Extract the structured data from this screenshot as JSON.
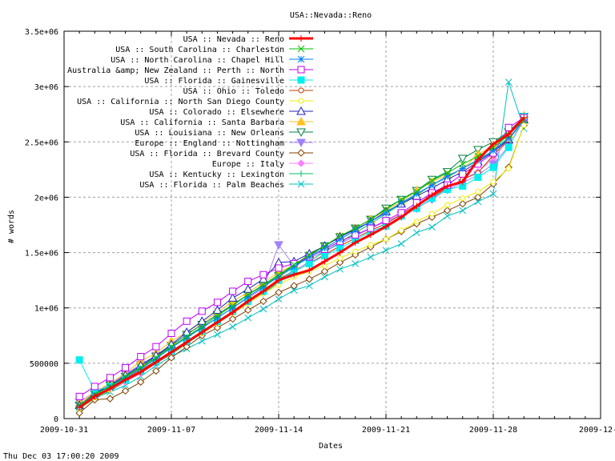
{
  "chart_data": {
    "type": "line",
    "title": "USA::Nevada::Reno",
    "xlabel": "Dates",
    "ylabel": "# words",
    "footer": "Thu Dec 03 17:00:20 2009",
    "xlim": [
      "2009-10-31",
      "2009-12-05"
    ],
    "ylim": [
      0,
      3500000
    ],
    "grid": true,
    "legend_position": "top-left",
    "x_ticks": [
      "2009-10-31",
      "2009-11-07",
      "2009-11-14",
      "2009-11-21",
      "2009-11-28",
      "2009-12-0"
    ],
    "y_ticks": [
      {
        "value": 0,
        "label": "0"
      },
      {
        "value": 500000,
        "label": "500000"
      },
      {
        "value": 1000000,
        "label": "1e+06"
      },
      {
        "value": 1500000,
        "label": "1.5e+06"
      },
      {
        "value": 2000000,
        "label": "2e+06"
      },
      {
        "value": 2500000,
        "label": "2.5e+06"
      },
      {
        "value": 3000000,
        "label": "3e+06"
      },
      {
        "value": 3500000,
        "label": "3.5e+06"
      }
    ],
    "x_start": "2009-11-01",
    "x_step_days": 1,
    "series": [
      {
        "name": "USA :: Nevada :: Reno",
        "color": "#ff0000",
        "marker": "plus",
        "width": 3,
        "values": [
          100000,
          200000,
          270000,
          350000,
          420000,
          510000,
          600000,
          690000,
          780000,
          870000,
          960000,
          1060000,
          1150000,
          1250000,
          1300000,
          1340000,
          1420000,
          1500000,
          1590000,
          1660000,
          1735000,
          1820000,
          1920000,
          2020000,
          2100000,
          2140000,
          2340000,
          2480000,
          2570000,
          2720000
        ]
      },
      {
        "name": "USA :: South Carolina :: Charleston",
        "color": "#00c000",
        "marker": "cross",
        "width": 1,
        "values": [
          120000,
          220000,
          290000,
          380000,
          460000,
          550000,
          650000,
          740000,
          830000,
          930000,
          1020000,
          1120000,
          1210000,
          1300000,
          1390000,
          1480000,
          1560000,
          1650000,
          1720000,
          1800000,
          1890000,
          1980000,
          2050000,
          2150000,
          2220000,
          2300000,
          2370000,
          2450000,
          2560000,
          2700000
        ]
      },
      {
        "name": "USA :: North Carolina :: Chapel Hill",
        "color": "#0080ff",
        "marker": "star",
        "width": 1,
        "values": [
          110000,
          210000,
          280000,
          370000,
          450000,
          540000,
          640000,
          730000,
          820000,
          910000,
          1000000,
          1100000,
          1190000,
          1280000,
          1370000,
          1460000,
          1540000,
          1620000,
          1700000,
          1780000,
          1860000,
          1950000,
          2030000,
          2110000,
          2190000,
          2260000,
          2330000,
          2420000,
          2530000,
          2700000
        ]
      },
      {
        "name": "Australia &amp; New Zealand :: Perth :: North",
        "color": "#c000ff",
        "marker": "box",
        "width": 1,
        "values": [
          200000,
          290000,
          370000,
          460000,
          560000,
          650000,
          770000,
          880000,
          970000,
          1050000,
          1150000,
          1240000,
          1300000,
          1360000,
          1400000,
          1460000,
          1530000,
          1600000,
          1660000,
          1720000,
          1790000,
          1860000,
          1950000,
          2040000,
          2110000,
          2210000,
          2300000,
          2400000,
          2630000,
          2720000
        ]
      },
      {
        "name": "USA :: Florida :: Gainesville",
        "color": "#00eeee",
        "marker": "fbox",
        "width": 1,
        "values": [
          530000,
          250000,
          290000,
          350000,
          430000,
          510000,
          610000,
          700000,
          790000,
          880000,
          970000,
          1060000,
          1150000,
          1250000,
          1330000,
          1400000,
          1470000,
          1540000,
          1610000,
          1690000,
          1740000,
          1830000,
          1900000,
          1990000,
          2070000,
          2100000,
          2180000,
          2270000,
          2450000,
          2730000
        ]
      },
      {
        "name": "USA :: Ohio :: Toledo",
        "color": "#c04000",
        "marker": "circle",
        "width": 1,
        "values": [
          100000,
          200000,
          280000,
          360000,
          440000,
          520000,
          610000,
          700000,
          790000,
          880000,
          970000,
          1070000,
          1160000,
          1260000,
          1330000,
          1400000,
          1480000,
          1560000,
          1630000,
          1700000,
          1760000,
          1850000,
          1930000,
          2000000,
          2080000,
          2160000,
          2220000,
          2380000,
          2520000,
          2700000
        ]
      },
      {
        "name": "USA :: California :: North San Diego County",
        "color": "#eeee00",
        "marker": "circle",
        "width": 1,
        "values": [
          90000,
          190000,
          260000,
          340000,
          420000,
          510000,
          600000,
          690000,
          770000,
          860000,
          950000,
          1040000,
          1130000,
          1210000,
          1280000,
          1330000,
          1380000,
          1450000,
          1510000,
          1570000,
          1620000,
          1700000,
          1780000,
          1850000,
          1930000,
          1990000,
          2050000,
          2140000,
          2260000,
          2650000
        ]
      },
      {
        "name": "USA :: Colorado :: Elsewhere",
        "color": "#2020c0",
        "marker": "triangle",
        "width": 1,
        "values": [
          120000,
          230000,
          300000,
          390000,
          480000,
          570000,
          670000,
          780000,
          880000,
          980000,
          1090000,
          1170000,
          1260000,
          1410000,
          1420000,
          1490000,
          1560000,
          1640000,
          1710000,
          1780000,
          1870000,
          1940000,
          2010000,
          2080000,
          2160000,
          2230000,
          2320000,
          2410000,
          2520000,
          2700000
        ]
      },
      {
        "name": "USA :: California :: Santa Barbara",
        "color": "#ffc020",
        "marker": "ftriangle",
        "width": 1,
        "values": [
          140000,
          240000,
          320000,
          410000,
          520000,
          590000,
          700000,
          780000,
          870000,
          960000,
          1060000,
          1140000,
          1230000,
          1320000,
          1390000,
          1480000,
          1560000,
          1650000,
          1720000,
          1800000,
          1880000,
          1960000,
          2060000,
          2140000,
          2200000,
          2250000,
          2390000,
          2460000,
          2570000,
          2740000
        ]
      },
      {
        "name": "USA :: Louisiana :: New Orleans",
        "color": "#008040",
        "marker": "itriangle",
        "width": 1,
        "values": [
          120000,
          220000,
          300000,
          380000,
          470000,
          560000,
          660000,
          760000,
          850000,
          940000,
          1030000,
          1120000,
          1200000,
          1290000,
          1380000,
          1470000,
          1560000,
          1640000,
          1720000,
          1800000,
          1900000,
          1980000,
          2060000,
          2160000,
          2230000,
          2350000,
          2430000,
          2500000,
          2590000,
          2730000
        ]
      },
      {
        "name": "Europe :: England :: Nottingham",
        "color": "#a080ff",
        "marker": "fitriangle",
        "width": 1,
        "values": [
          150000,
          240000,
          310000,
          400000,
          490000,
          570000,
          650000,
          740000,
          820000,
          910000,
          1000000,
          1090000,
          1180000,
          1570000,
          1380000,
          1450000,
          1510000,
          1580000,
          1650000,
          1720000,
          1780000,
          1840000,
          1900000,
          1980000,
          2070000,
          2130000,
          2200000,
          2300000,
          2460000,
          2700000
        ]
      },
      {
        "name": "USA :: Florida :: Brevard County",
        "color": "#804000",
        "marker": "diamond",
        "width": 1,
        "values": [
          50000,
          170000,
          180000,
          250000,
          330000,
          430000,
          550000,
          650000,
          750000,
          820000,
          900000,
          980000,
          1060000,
          1140000,
          1200000,
          1260000,
          1330000,
          1410000,
          1480000,
          1550000,
          1620000,
          1690000,
          1760000,
          1820000,
          1880000,
          1940000,
          2000000,
          2120000,
          2270000,
          2650000
        ]
      },
      {
        "name": "Europe :: Italy",
        "color": "#ff80ff",
        "marker": "fdiamond",
        "width": 1,
        "values": [
          110000,
          190000,
          260000,
          330000,
          410000,
          500000,
          590000,
          690000,
          790000,
          880000,
          970000,
          1070000,
          1160000,
          1260000,
          1340000,
          1410000,
          1480000,
          1560000,
          1630000,
          1700000,
          1760000,
          1840000,
          1920000,
          2000000,
          2090000,
          2160000,
          2230000,
          2350000,
          2520000,
          2710000
        ]
      },
      {
        "name": "USA :: Kentucky :: Lexington",
        "color": "#00c060",
        "marker": "plus",
        "width": 1,
        "values": [
          90000,
          180000,
          250000,
          330000,
          410000,
          500000,
          580000,
          680000,
          770000,
          860000,
          950000,
          1040000,
          1130000,
          1230000,
          1330000,
          1420000,
          1510000,
          1590000,
          1680000,
          1760000,
          1850000,
          1940000,
          2020000,
          2110000,
          2180000,
          2260000,
          2340000,
          2420000,
          2540000,
          2680000
        ]
      },
      {
        "name": "USA :: Florida :: Palm Beaches",
        "color": "#00c0c0",
        "marker": "cross",
        "width": 1,
        "values": [
          100000,
          190000,
          240000,
          300000,
          380000,
          480000,
          560000,
          630000,
          700000,
          760000,
          830000,
          910000,
          990000,
          1080000,
          1160000,
          1200000,
          1280000,
          1350000,
          1400000,
          1460000,
          1520000,
          1580000,
          1680000,
          1730000,
          1830000,
          1880000,
          1960000,
          2030000,
          3040000,
          2620000
        ]
      }
    ]
  }
}
